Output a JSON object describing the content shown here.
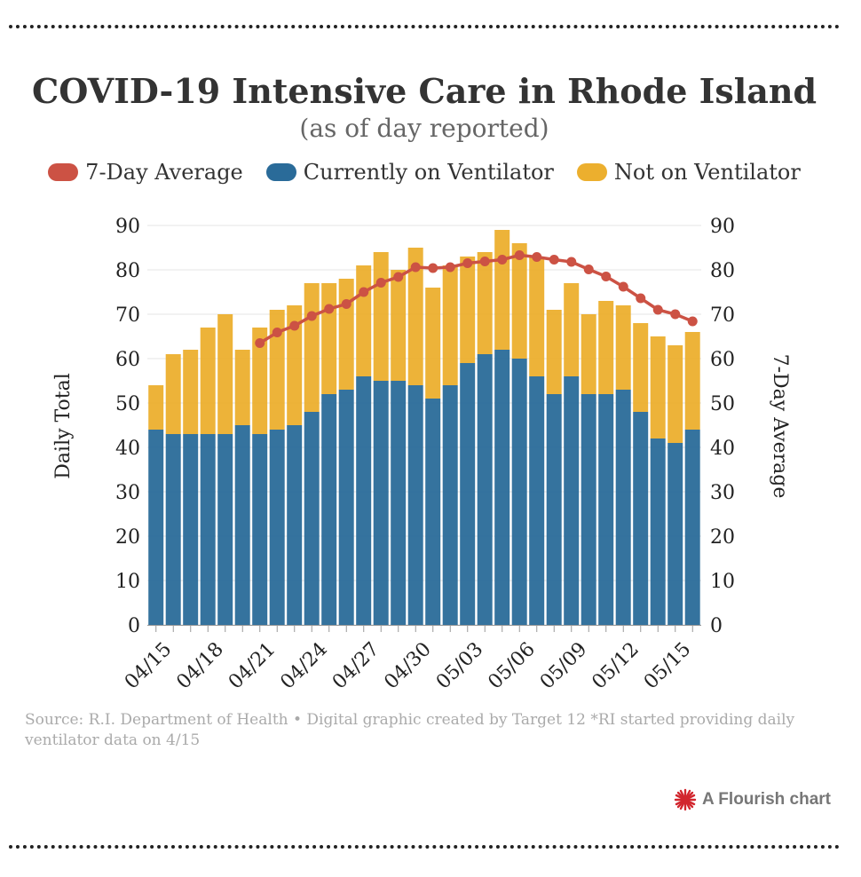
{
  "header": {
    "title": "COVID-19 Intensive Care in Rhode Island",
    "subtitle": "(as of day reported)"
  },
  "legend": [
    {
      "label": "7-Day Average",
      "color": "#cc5244"
    },
    {
      "label": "Currently on Ventilator",
      "color": "#2a6b99"
    },
    {
      "label": "Not on Ventilator",
      "color": "#ecaf2e"
    }
  ],
  "footer": {
    "source": "Source: R.I. Department of Health • Digital graphic created by Target 12 *RI started providing daily ventilator data on 4/15",
    "brand": "A Flourish chart"
  },
  "chart_data": {
    "type": "bar",
    "stacked": true,
    "categories": [
      "04/15",
      "04/16",
      "04/17",
      "04/18",
      "04/19",
      "04/20",
      "04/21",
      "04/22",
      "04/23",
      "04/24",
      "04/25",
      "04/26",
      "04/27",
      "04/28",
      "04/29",
      "04/30",
      "05/01",
      "05/02",
      "05/03",
      "05/04",
      "05/05",
      "05/06",
      "05/07",
      "05/08",
      "05/09",
      "05/10",
      "05/11",
      "05/12",
      "05/13",
      "05/14",
      "05/15",
      "05/16"
    ],
    "tick_labels": [
      "04/15",
      "04/18",
      "04/21",
      "04/24",
      "04/27",
      "04/30",
      "05/03",
      "05/06",
      "05/09",
      "05/12",
      "05/15"
    ],
    "series": [
      {
        "name": "Currently on Ventilator",
        "color": "#2a6b99",
        "values": [
          44,
          43,
          43,
          43,
          43,
          45,
          43,
          44,
          45,
          48,
          52,
          53,
          56,
          55,
          55,
          54,
          51,
          54,
          59,
          61,
          62,
          60,
          56,
          52,
          56,
          52,
          52,
          53,
          48,
          42,
          41,
          44
        ]
      },
      {
        "name": "Not on Ventilator",
        "color": "#ecaf2e",
        "values": [
          10,
          18,
          19,
          24,
          27,
          17,
          24,
          27,
          27,
          29,
          25,
          25,
          25,
          29,
          25,
          31,
          25,
          27,
          24,
          23,
          27,
          26,
          27,
          19,
          21,
          18,
          21,
          19,
          20,
          23,
          22,
          22
        ]
      },
      {
        "name": "7-Day Average",
        "color": "#cc5244",
        "type": "line",
        "values": [
          null,
          null,
          null,
          null,
          null,
          null,
          63.5,
          65.9,
          67.4,
          69.6,
          71.2,
          72.3,
          75.0,
          77.1,
          78.4,
          80.6,
          80.4,
          80.6,
          81.5,
          81.9,
          82.3,
          83.3,
          82.9,
          82.3,
          81.8,
          80.1,
          78.5,
          76.2,
          73.6,
          71.0,
          70.0,
          68.4
        ]
      }
    ],
    "ylabel": "Daily Total",
    "y2label": "7-Day Average",
    "ylim": [
      0,
      90
    ],
    "y2lim": [
      0,
      90
    ],
    "yticks": [
      0,
      10,
      20,
      30,
      40,
      50,
      60,
      70,
      80,
      90
    ]
  }
}
